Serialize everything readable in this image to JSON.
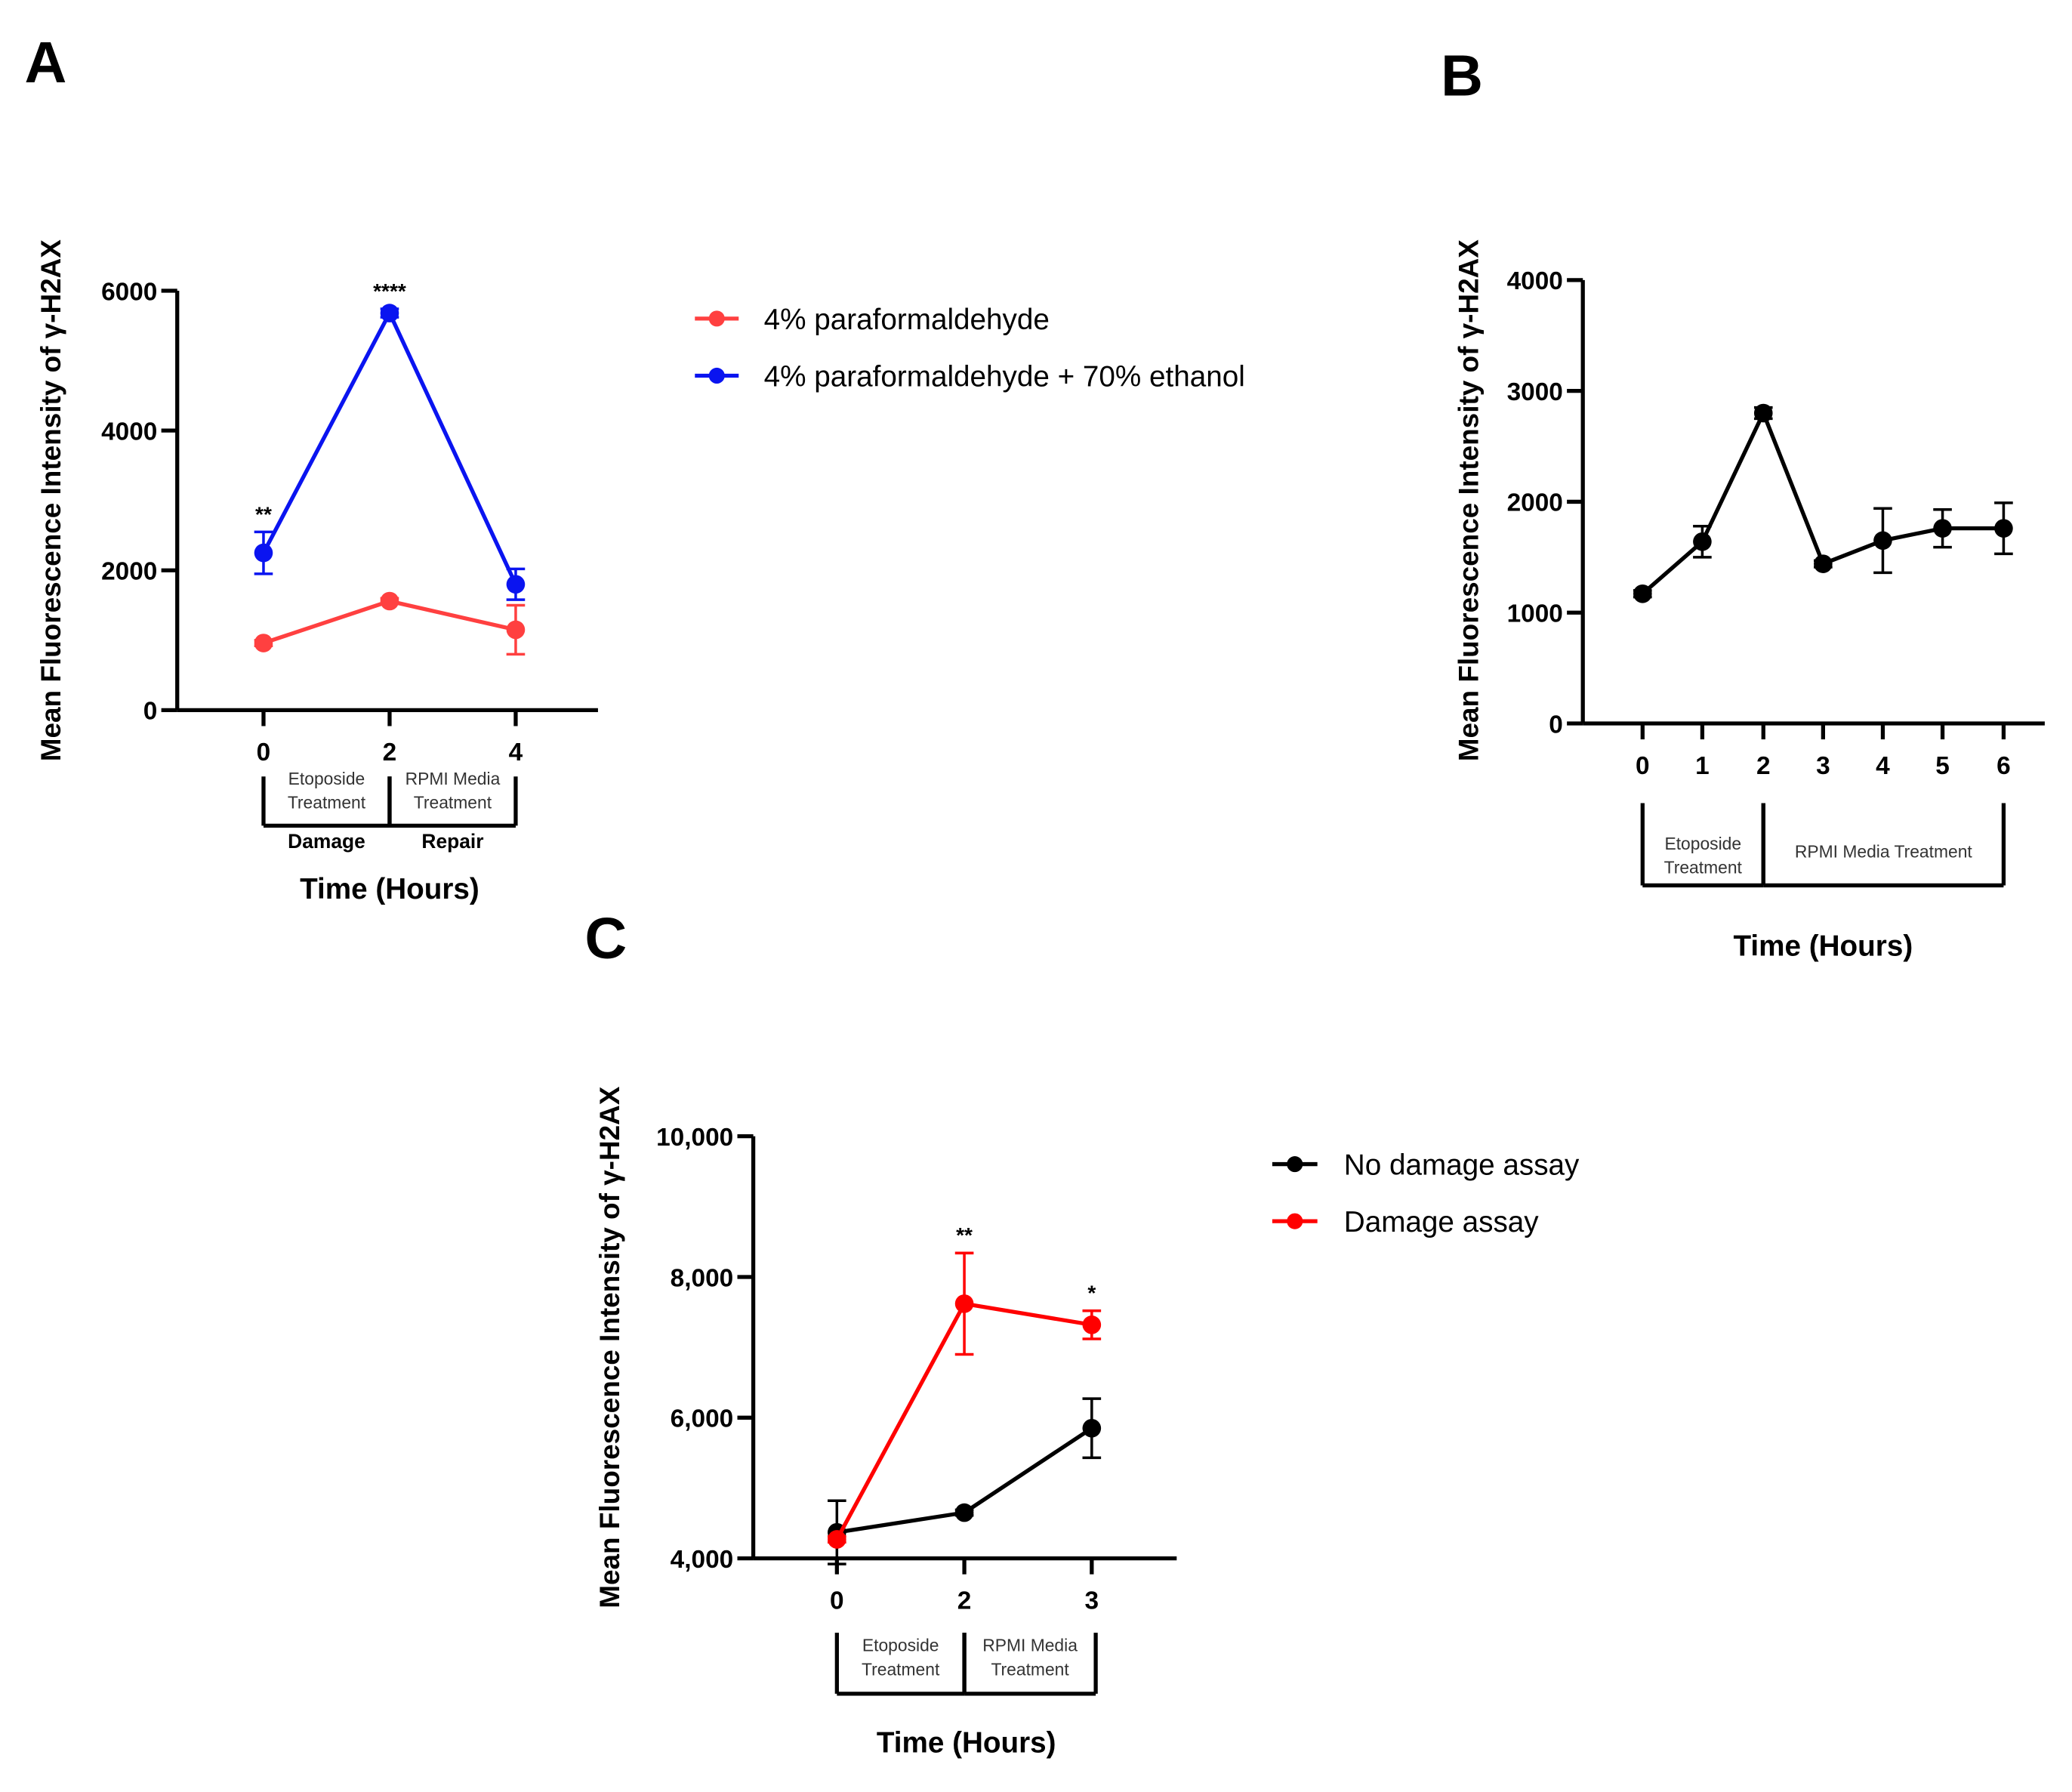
{
  "chart_data": [
    {
      "panel": "A",
      "type": "line",
      "ylabel": "Mean Fluorescence Intensity of γ-H2AX",
      "xlabel": "Time (Hours)",
      "x": [
        0,
        2,
        4
      ],
      "x_ticks": [
        "0",
        "2",
        "4"
      ],
      "ylim": [
        0,
        6000
      ],
      "y_ticks": [
        "0",
        "2000",
        "4000",
        "6000"
      ],
      "y_tick_values": [
        0,
        2000,
        4000,
        6000
      ],
      "legend_position": "right",
      "series": [
        {
          "name": "4% paraformaldehyde",
          "color": "#ff4040",
          "values": [
            960,
            1560,
            1150
          ],
          "errors": [
            40,
            40,
            350
          ]
        },
        {
          "name": "4% paraformaldehyde + 70% ethanol",
          "color": "#0a14f0",
          "values": [
            2250,
            5680,
            1800
          ],
          "errors": [
            300,
            60,
            220
          ]
        }
      ],
      "annotations": [
        {
          "x": 0,
          "text": "**"
        },
        {
          "x": 2,
          "text": "****"
        }
      ],
      "brackets": [
        {
          "from": 0,
          "to": 2,
          "label": "Etoposide Treatment",
          "sublabel": "Damage"
        },
        {
          "from": 2,
          "to": 4,
          "label": "RPMI Media Treatment",
          "sublabel": "Repair"
        }
      ]
    },
    {
      "panel": "B",
      "type": "line",
      "ylabel": "Mean Fluorescence Intensity of γ-H2AX",
      "xlabel": "Time (Hours)",
      "x": [
        0,
        1,
        2,
        3,
        4,
        5,
        6
      ],
      "x_ticks": [
        "0",
        "1",
        "2",
        "3",
        "4",
        "5",
        "6"
      ],
      "ylim": [
        0,
        4000
      ],
      "y_ticks": [
        "0",
        "1000",
        "2000",
        "3000",
        "4000"
      ],
      "y_tick_values": [
        0,
        1000,
        2000,
        3000,
        4000
      ],
      "series": [
        {
          "name": "",
          "color": "#000000",
          "values": [
            1170,
            1640,
            2800,
            1440,
            1650,
            1760,
            1760
          ],
          "errors": [
            30,
            140,
            50,
            30,
            290,
            170,
            230
          ]
        }
      ],
      "annotations": [],
      "brackets": [
        {
          "from": 0,
          "to": 2,
          "label": "Etoposide Treatment",
          "sublabel": ""
        },
        {
          "from": 2,
          "to": 6,
          "label": "RPMI Media Treatment",
          "sublabel": ""
        }
      ]
    },
    {
      "panel": "C",
      "type": "line",
      "ylabel": "Mean Fluorescence Intensity of γ-H2AX",
      "xlabel": "Time (Hours)",
      "x": [
        0,
        2,
        3
      ],
      "x_ticks": [
        "0",
        "2",
        "3"
      ],
      "ylim": [
        4000,
        10000
      ],
      "y_ticks": [
        "4,000",
        "6,000",
        "8,000",
        "10,000"
      ],
      "y_tick_values": [
        4000,
        6000,
        8000,
        10000
      ],
      "legend_position": "right",
      "series": [
        {
          "name": "No damage assay",
          "color": "#000000",
          "values": [
            4370,
            4650,
            5850
          ],
          "errors": [
            450,
            40,
            420
          ]
        },
        {
          "name": "Damage assay",
          "color": "#ff0000",
          "values": [
            4270,
            7620,
            7320
          ],
          "errors": [
            40,
            720,
            200
          ]
        }
      ],
      "annotations": [
        {
          "x": 2,
          "text": "**"
        },
        {
          "x": 3,
          "text": "*"
        }
      ],
      "brackets": [
        {
          "from": 0,
          "to": 2,
          "label": "Etoposide Treatment",
          "sublabel": ""
        },
        {
          "from": 2,
          "to": 3,
          "label": "RPMI Media Treatment",
          "sublabel": ""
        }
      ]
    }
  ]
}
